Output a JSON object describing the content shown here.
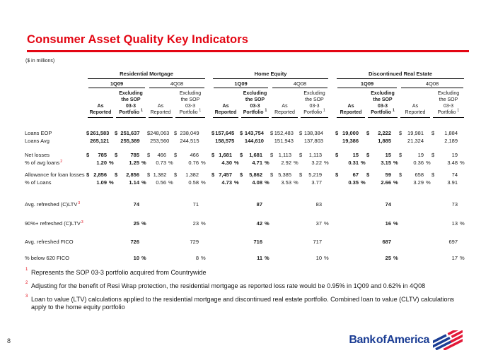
{
  "slide": {
    "title": "Consumer Asset Quality Key Indicators",
    "units_note": "($ in millions)",
    "page_number": "8",
    "colors": {
      "accent_red": "#e30613",
      "logo_blue": "#1b3d94",
      "flag_red": "#e31837",
      "line_black": "#000000"
    }
  },
  "table": {
    "groups": [
      {
        "label": "Residential Mortgage"
      },
      {
        "label": "Home Equity"
      },
      {
        "label": "Discontinued Real Estate"
      }
    ],
    "periods": [
      "1Q09",
      "4Q08"
    ],
    "col_headers": {
      "as_reported": [
        "As",
        "Reported"
      ],
      "excluding": [
        "Excluding",
        "the SOP",
        "03-3",
        "Portfolio "
      ],
      "excluding_sup": "1"
    },
    "rows": [
      {
        "label": "Loans EOP",
        "gap": 16,
        "cells": [
          [
            "$",
            "261,583",
            ""
          ],
          [
            "$",
            "251,637",
            ""
          ],
          [
            "$",
            "248,063",
            ""
          ],
          [
            "$",
            "238,049",
            ""
          ],
          [
            "$",
            "157,645",
            ""
          ],
          [
            "$",
            "143,754",
            ""
          ],
          [
            "$",
            "152,483",
            ""
          ],
          [
            "$",
            "138,384",
            ""
          ],
          [
            "$",
            "19,000",
            ""
          ],
          [
            "$",
            "2,222",
            ""
          ],
          [
            "$",
            "19,981",
            ""
          ],
          [
            "$",
            "1,884",
            ""
          ]
        ]
      },
      {
        "label": "Loans Avg",
        "gap": 0,
        "cells": [
          [
            "",
            "265,121",
            ""
          ],
          [
            "",
            "255,389",
            ""
          ],
          [
            "",
            "253,560",
            ""
          ],
          [
            "",
            "244,515",
            ""
          ],
          [
            "",
            "158,575",
            ""
          ],
          [
            "",
            "144,610",
            ""
          ],
          [
            "",
            "151,943",
            ""
          ],
          [
            "",
            "137,803",
            ""
          ],
          [
            "",
            "19,386",
            ""
          ],
          [
            "",
            "1,885",
            ""
          ],
          [
            "",
            "21,324",
            ""
          ],
          [
            "",
            "2,189",
            ""
          ]
        ]
      },
      {
        "label": "Net losses",
        "gap": 9,
        "cells": [
          [
            "$",
            "785",
            ""
          ],
          [
            "$",
            "785",
            ""
          ],
          [
            "$",
            "466",
            ""
          ],
          [
            "$",
            "466",
            ""
          ],
          [
            "$",
            "1,681",
            ""
          ],
          [
            "$",
            "1,681",
            ""
          ],
          [
            "$",
            "1,113",
            ""
          ],
          [
            "$",
            "1,113",
            ""
          ],
          [
            "$",
            "15",
            ""
          ],
          [
            "$",
            "15",
            ""
          ],
          [
            "$",
            "19",
            ""
          ],
          [
            "$",
            "19",
            ""
          ]
        ]
      },
      {
        "label": "% of avg loans",
        "sup": "2",
        "gap": 0,
        "cells": [
          [
            "",
            "1.20",
            "%"
          ],
          [
            "",
            "1.25",
            "%"
          ],
          [
            "",
            "0.73",
            "%"
          ],
          [
            "",
            "0.76",
            "%"
          ],
          [
            "",
            "4.30",
            "%"
          ],
          [
            "",
            "4.71",
            "%"
          ],
          [
            "",
            "2.92",
            "%"
          ],
          [
            "",
            "3.22",
            "%"
          ],
          [
            "",
            "0.31",
            "%"
          ],
          [
            "",
            "3.15",
            "%"
          ],
          [
            "",
            "0.36",
            "%"
          ],
          [
            "",
            "3.48",
            "%"
          ]
        ]
      },
      {
        "label": "Allowance for loan losses",
        "gap": 6,
        "cells": [
          [
            "$",
            "2,856",
            ""
          ],
          [
            "$",
            "2,856",
            ""
          ],
          [
            "$",
            "1,382",
            ""
          ],
          [
            "$",
            "1,382",
            ""
          ],
          [
            "$",
            "7,457",
            ""
          ],
          [
            "$",
            "5,862",
            ""
          ],
          [
            "$",
            "5,385",
            ""
          ],
          [
            "$",
            "5,219",
            ""
          ],
          [
            "$",
            "67",
            ""
          ],
          [
            "$",
            "59",
            ""
          ],
          [
            "$",
            "658",
            ""
          ],
          [
            "$",
            "74",
            ""
          ]
        ]
      },
      {
        "label": "% of Loans",
        "gap": 0,
        "cells": [
          [
            "",
            "1.09",
            "%"
          ],
          [
            "",
            "1.14",
            "%"
          ],
          [
            "",
            "0.56",
            "%"
          ],
          [
            "",
            "0.58",
            "%"
          ],
          [
            "",
            "4.73",
            "%"
          ],
          [
            "",
            "4.08",
            "%"
          ],
          [
            "",
            "3.53",
            "%"
          ],
          [
            "",
            "3.77",
            ""
          ],
          [
            "",
            "0.35",
            "%"
          ],
          [
            "",
            "2.66",
            "%"
          ],
          [
            "",
            "3.29",
            "%"
          ],
          [
            "",
            "3.91",
            ""
          ]
        ]
      },
      {
        "label": "Avg. refreshed (C)LTV",
        "sup": "3",
        "gap": 20,
        "cells": [
          null,
          [
            "",
            "74",
            ""
          ],
          null,
          [
            "",
            "71",
            ""
          ],
          null,
          [
            "",
            "87",
            ""
          ],
          null,
          [
            "",
            "83",
            ""
          ],
          null,
          [
            "",
            "74",
            ""
          ],
          null,
          [
            "",
            "73",
            ""
          ]
        ]
      },
      {
        "label": "90%+ refreshed (C)LTV",
        "sup": "3",
        "gap": 16,
        "cells": [
          null,
          [
            "",
            "25",
            "%"
          ],
          null,
          [
            "",
            "23",
            "%"
          ],
          null,
          [
            "",
            "42",
            "%"
          ],
          null,
          [
            "",
            "37",
            "%"
          ],
          null,
          [
            "",
            "16",
            "%"
          ],
          null,
          [
            "",
            "13",
            "%"
          ]
        ]
      },
      {
        "label": "Avg. refreshed FICO",
        "gap": 15,
        "cells": [
          null,
          [
            "",
            "726",
            ""
          ],
          null,
          [
            "",
            "729",
            ""
          ],
          null,
          [
            "",
            "716",
            ""
          ],
          null,
          [
            "",
            "717",
            ""
          ],
          null,
          [
            "",
            "687",
            ""
          ],
          null,
          [
            "",
            "697",
            ""
          ]
        ]
      },
      {
        "label": "% below 620 FICO",
        "gap": 12,
        "cells": [
          null,
          [
            "",
            "10",
            "%"
          ],
          null,
          [
            "",
            "8",
            "%"
          ],
          null,
          [
            "",
            "11",
            "%"
          ],
          null,
          [
            "",
            "10",
            "%"
          ],
          null,
          [
            "",
            "25",
            "%"
          ],
          null,
          [
            "",
            "17",
            "%"
          ]
        ]
      }
    ]
  },
  "footnotes": [
    {
      "sup": "1",
      "text": "Represents the SOP 03-3 portfolio acquired from Countrywide"
    },
    {
      "sup": "2",
      "text": "Adjusting for the benefit of Resi Wrap protection, the residential mortgage as reported loss rate would be 0.95% in 1Q09 and 0.62% in 4Q08"
    },
    {
      "sup": "3",
      "text": "Loan to value (LTV) calculations applied to the residential mortgage and discontinued real estate portfolio.  Combined loan to value (CLTV) calculations apply to the home equity portfolio"
    }
  ],
  "logo": {
    "text": "Bank of America"
  }
}
